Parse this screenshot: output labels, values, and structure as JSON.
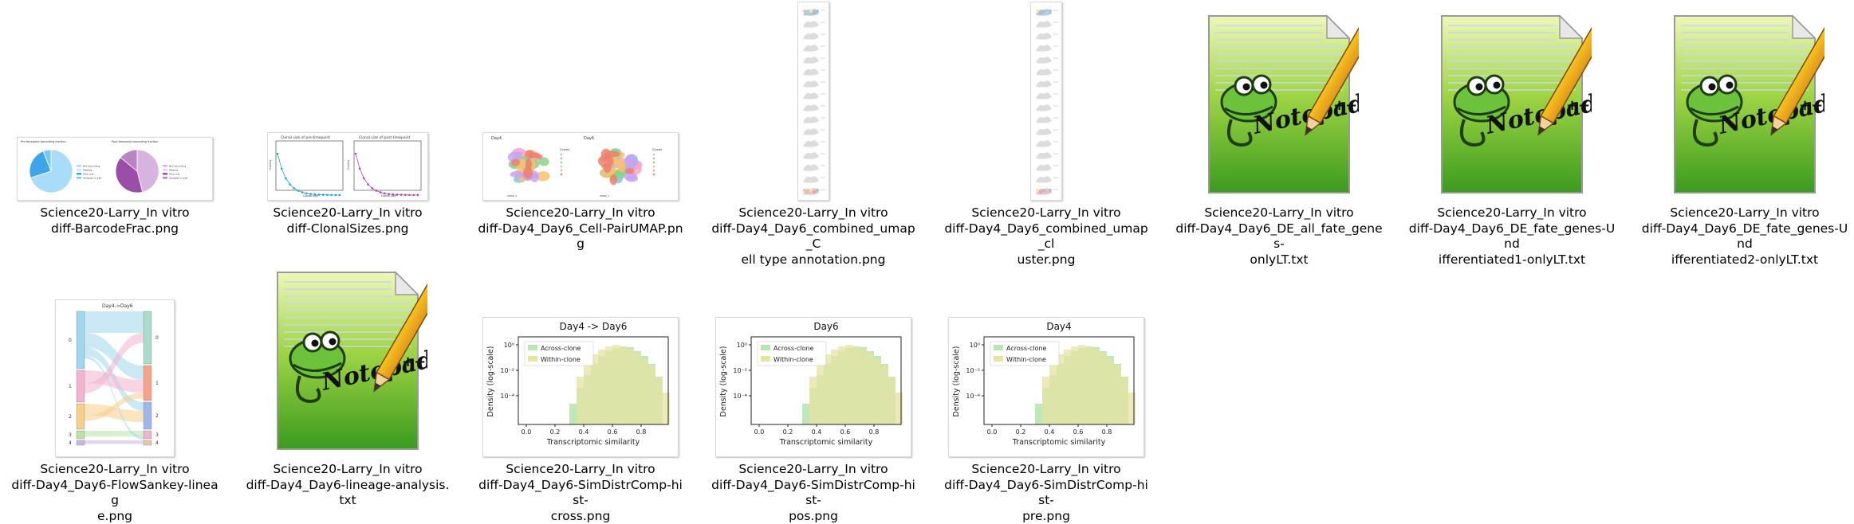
{
  "window": {
    "view": "large-icons"
  },
  "files": [
    {
      "name": "Science20-Larry_In vitro\ndiff-BarcodeFrac.png",
      "kind": "png",
      "thumb": "barcode-frac"
    },
    {
      "name": "Science20-Larry_In vitro\ndiff-ClonalSizes.png",
      "kind": "png",
      "thumb": "clonal-sizes"
    },
    {
      "name": "Science20-Larry_In vitro\ndiff-Day4_Day6_Cell-PairUMAP.png",
      "kind": "png",
      "thumb": "pair-umap"
    },
    {
      "name": "Science20-Larry_In vitro\ndiff-Day4_Day6_combined_umap_C\nell type annotation.png",
      "kind": "png",
      "thumb": "tall-umap-1"
    },
    {
      "name": "Science20-Larry_In vitro\ndiff-Day4_Day6_combined_umap_cl\nuster.png",
      "kind": "png",
      "thumb": "tall-umap-2"
    },
    {
      "name": "Science20-Larry_In vitro\ndiff-Day4_Day6_DE_all_fate_genes-\nonlyLT.txt",
      "kind": "txt",
      "thumb": "notepad"
    },
    {
      "name": "Science20-Larry_In vitro\ndiff-Day4_Day6_DE_fate_genes-Und\nifferentiated1-onlyLT.txt",
      "kind": "txt",
      "thumb": "notepad"
    },
    {
      "name": "Science20-Larry_In vitro\ndiff-Day4_Day6_DE_fate_genes-Und\nifferentiated2-onlyLT.txt",
      "kind": "txt",
      "thumb": "notepad"
    },
    {
      "name": "Science20-Larry_In vitro\ndiff-Day4_Day6-FlowSankey-lineag\ne.png",
      "kind": "png",
      "thumb": "sankey"
    },
    {
      "name": "Science20-Larry_In vitro\ndiff-Day4_Day6-lineage-analysis.txt",
      "kind": "txt",
      "thumb": "notepad"
    },
    {
      "name": "Science20-Larry_In vitro\ndiff-Day4_Day6-SimDistrComp-hist-\ncross.png",
      "kind": "png",
      "thumb": "hist",
      "title": "Day4 -> Day6"
    },
    {
      "name": "Science20-Larry_In vitro\ndiff-Day4_Day6-SimDistrComp-hist-\npos.png",
      "kind": "png",
      "thumb": "hist",
      "title": "Day6"
    },
    {
      "name": "Science20-Larry_In vitro\ndiff-Day4_Day6-SimDistrComp-hist-\npre.png",
      "kind": "png",
      "thumb": "hist",
      "title": "Day4"
    }
  ],
  "thumb_text": {
    "barcode": {
      "left_title": "Pre-timepoint barcoding fraction",
      "right_title": "Post-timepoint barcoding fraction",
      "legend": [
        "Not barcoding",
        "Missing",
        "Only one",
        "Sampled in pair"
      ]
    },
    "clonal": {
      "left_title": "Clonal size of pre-timepoint",
      "right_title": "Clonal size of post-timepoint",
      "xlabel": "Clonal size",
      "ylabel": "Counts"
    },
    "umap": {
      "left_title": "Day4",
      "right_title": "Day6",
      "axis_x": "UMAP_1",
      "axis_y": "UMAP_2",
      "legend_title": "Cluster"
    },
    "sankey": {
      "title": "Day4->Day6",
      "left_labels": [
        "0",
        "1",
        "2",
        "3",
        "4"
      ],
      "right_labels": [
        "0",
        "1",
        "2",
        "3",
        "4"
      ]
    },
    "hist": {
      "ylabel": "Density (log-scale)",
      "xlabel": "Transcriptomic similarity",
      "legend": [
        "Across-clone",
        "Within-clone"
      ],
      "xticks": [
        "0.0",
        "0.2",
        "0.4",
        "0.6",
        "0.8"
      ],
      "yticks": [
        "10⁰",
        "10⁻²",
        "10⁻⁴"
      ]
    },
    "notepad": {
      "logo_text": "Notepad++"
    }
  },
  "colors": {
    "pie_blue": "#a8dcf8",
    "pie_blue_dark": "#3ea6e8",
    "pie_purple": "#d7b3df",
    "pie_purple_dark": "#9a4ea8",
    "across_clone": "#b7e6b0",
    "within_clone": "#e6e3a3",
    "notepad_green": "#5db92d"
  }
}
